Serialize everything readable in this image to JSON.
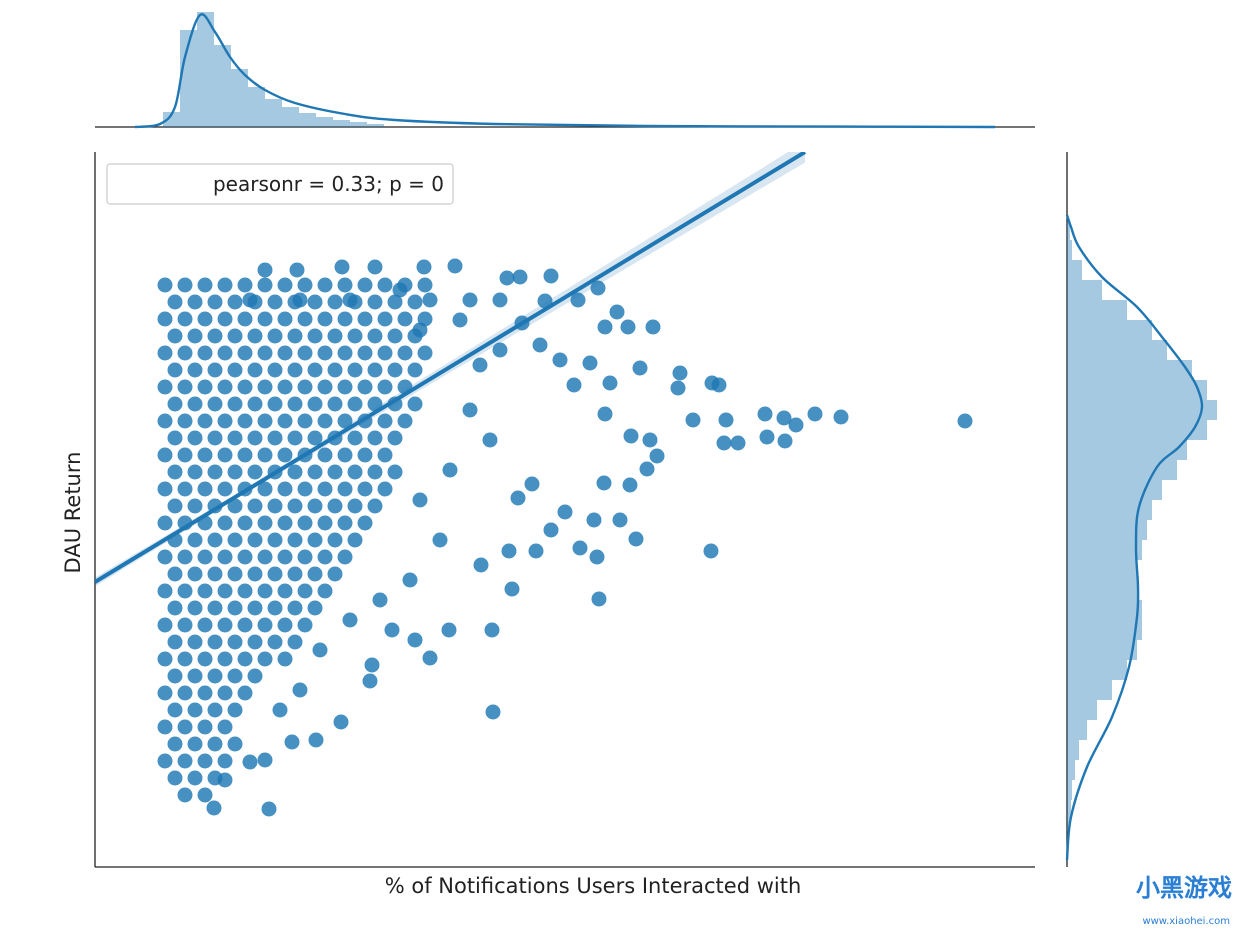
{
  "chart_data": [
    {
      "type": "scatter",
      "x_label": "% of Notifications Users Interacted with",
      "y_label": "DAU Return",
      "annotation": "pearsonr = 0.33; p = 0",
      "xlim": [
        0,
        94
      ],
      "ylim": [
        0,
        71.5
      ],
      "series": [
        {
          "color": "#1f77b4",
          "x": [
            7,
            9,
            11,
            13,
            15,
            17,
            19,
            21,
            23,
            25,
            27,
            29,
            31,
            33,
            8,
            10,
            12,
            14,
            16,
            18,
            20,
            22,
            24,
            26,
            28,
            30,
            32,
            7,
            9,
            11,
            13,
            15,
            17,
            19,
            21,
            23,
            25,
            27,
            29,
            31,
            33,
            8,
            10,
            12,
            14,
            16,
            18,
            20,
            22,
            24,
            26,
            28,
            30,
            32,
            7,
            9,
            11,
            13,
            15,
            17,
            19,
            21,
            23,
            25,
            27,
            29,
            31,
            33,
            8,
            10,
            12,
            14,
            16,
            18,
            20,
            22,
            24,
            26,
            28,
            30,
            32,
            7,
            9,
            11,
            13,
            15,
            17,
            19,
            21,
            23,
            25,
            27,
            29,
            31,
            8,
            10,
            12,
            14,
            16,
            18,
            20,
            22,
            24,
            26,
            28,
            30,
            32,
            7,
            9,
            11,
            13,
            15,
            17,
            19,
            21,
            23,
            25,
            27,
            29,
            31,
            8,
            10,
            12,
            14,
            16,
            18,
            20,
            22,
            24,
            26,
            28,
            30,
            7,
            9,
            11,
            13,
            15,
            17,
            19,
            21,
            23,
            25,
            27,
            29,
            8,
            10,
            12,
            14,
            16,
            18,
            20,
            22,
            24,
            26,
            28,
            30,
            7,
            9,
            11,
            13,
            15,
            17,
            19,
            21,
            23,
            25,
            27,
            29,
            8,
            10,
            12,
            14,
            16,
            18,
            20,
            22,
            24,
            26,
            28,
            7,
            9,
            11,
            13,
            15,
            17,
            19,
            21,
            23,
            25,
            27,
            8,
            10,
            12,
            14,
            16,
            18,
            20,
            22,
            24,
            26,
            7,
            9,
            11,
            13,
            15,
            17,
            19,
            21,
            23,
            25,
            8,
            10,
            12,
            14,
            16,
            18,
            20,
            22,
            24,
            7,
            9,
            11,
            13,
            15,
            17,
            19,
            21,
            23,
            8,
            10,
            12,
            14,
            16,
            18,
            20,
            22,
            7,
            9,
            11,
            13,
            15,
            17,
            19,
            21,
            8,
            10,
            12,
            14,
            16,
            18,
            20,
            7,
            9,
            11,
            13,
            15,
            17,
            19,
            8,
            10,
            12,
            14,
            16,
            7,
            9,
            11,
            13,
            15,
            8,
            10,
            12,
            14,
            7,
            9,
            11,
            13,
            8,
            10,
            12,
            14,
            7,
            9,
            11,
            13,
            8,
            10,
            12,
            9,
            11,
            87,
            74.6,
            72,
            68.9,
            67,
            70.1,
            63.1,
            64.3,
            62.9,
            67.2,
            69,
            59.8,
            61.6,
            50.4,
            39.8,
            17.4,
            50.9,
            53.5,
            54.1,
            51,
            53.6,
            55.5,
            56.2,
            55.2,
            61.7,
            62.4,
            58.5,
            58.3,
            52.5,
            49.9,
            48.5,
            50.2,
            44.1,
            41.7,
            38.6,
            41.4,
            45.6,
            47,
            42.3,
            43.7,
            55.8,
            53.3,
            51,
            52.2,
            48.3,
            50.3,
            45.6,
            42.5,
            41.2,
            36,
            32.9,
            28,
            24.7,
            20.2,
            17,
            35.4,
            39.7,
            33.5,
            32,
            29.7,
            27.7,
            27.5,
            24.6,
            22.1,
            19.7,
            17,
            15.5,
            13,
            11.9,
            51.5,
            54.5,
            49.5,
            47.9,
            44.5,
            46.5,
            40.5,
            38.5,
            37.5,
            39.5,
            35.5,
            32.5,
            34.5,
            31.5,
            28.5,
            25.5,
            22.5,
            20.5,
            18.5,
            33.5,
            36.5,
            30.5,
            25.5,
            20.5,
            15.5,
            42.7,
            45,
            37.5,
            40.5,
            32.5
          ],
          "y": [
            58.2,
            58.2,
            58.2,
            58.2,
            58.2,
            58.2,
            58.2,
            58.2,
            58.2,
            58.2,
            58.2,
            58.2,
            58.2,
            58.2,
            56.5,
            56.5,
            56.5,
            56.5,
            56.5,
            56.5,
            56.5,
            56.5,
            56.5,
            56.5,
            56.5,
            56.5,
            56.5,
            54.8,
            54.8,
            54.8,
            54.8,
            54.8,
            54.8,
            54.8,
            54.8,
            54.8,
            54.8,
            54.8,
            54.8,
            54.8,
            54.8,
            53.1,
            53.1,
            53.1,
            53.1,
            53.1,
            53.1,
            53.1,
            53.1,
            53.1,
            53.1,
            53.1,
            53.1,
            53.1,
            51.4,
            51.4,
            51.4,
            51.4,
            51.4,
            51.4,
            51.4,
            51.4,
            51.4,
            51.4,
            51.4,
            51.4,
            51.4,
            51.4,
            49.7,
            49.7,
            49.7,
            49.7,
            49.7,
            49.7,
            49.7,
            49.7,
            49.7,
            49.7,
            49.7,
            49.7,
            49.7,
            48,
            48,
            48,
            48,
            48,
            48,
            48,
            48,
            48,
            48,
            48,
            48,
            48,
            46.3,
            46.3,
            46.3,
            46.3,
            46.3,
            46.3,
            46.3,
            46.3,
            46.3,
            46.3,
            46.3,
            46.3,
            46.3,
            44.6,
            44.6,
            44.6,
            44.6,
            44.6,
            44.6,
            44.6,
            44.6,
            44.6,
            44.6,
            44.6,
            44.6,
            44.6,
            42.9,
            42.9,
            42.9,
            42.9,
            42.9,
            42.9,
            42.9,
            42.9,
            42.9,
            42.9,
            42.9,
            42.9,
            41.2,
            41.2,
            41.2,
            41.2,
            41.2,
            41.2,
            41.2,
            41.2,
            41.2,
            41.2,
            41.2,
            41.2,
            39.5,
            39.5,
            39.5,
            39.5,
            39.5,
            39.5,
            39.5,
            39.5,
            39.5,
            39.5,
            39.5,
            39.5,
            37.8,
            37.8,
            37.8,
            37.8,
            37.8,
            37.8,
            37.8,
            37.8,
            37.8,
            37.8,
            37.8,
            37.8,
            36.1,
            36.1,
            36.1,
            36.1,
            36.1,
            36.1,
            36.1,
            36.1,
            36.1,
            36.1,
            36.1,
            34.4,
            34.4,
            34.4,
            34.4,
            34.4,
            34.4,
            34.4,
            34.4,
            34.4,
            34.4,
            34.4,
            32.7,
            32.7,
            32.7,
            32.7,
            32.7,
            32.7,
            32.7,
            32.7,
            32.7,
            32.7,
            31,
            31,
            31,
            31,
            31,
            31,
            31,
            31,
            31,
            31,
            29.3,
            29.3,
            29.3,
            29.3,
            29.3,
            29.3,
            29.3,
            29.3,
            29.3,
            27.6,
            27.6,
            27.6,
            27.6,
            27.6,
            27.6,
            27.6,
            27.6,
            27.6,
            25.9,
            25.9,
            25.9,
            25.9,
            25.9,
            25.9,
            25.9,
            25.9,
            24.2,
            24.2,
            24.2,
            24.2,
            24.2,
            24.2,
            24.2,
            24.2,
            22.5,
            22.5,
            22.5,
            22.5,
            22.5,
            22.5,
            22.5,
            20.8,
            20.8,
            20.8,
            20.8,
            20.8,
            20.8,
            20.8,
            19.1,
            19.1,
            19.1,
            19.1,
            19.1,
            17.4,
            17.4,
            17.4,
            17.4,
            17.4,
            15.7,
            15.7,
            15.7,
            15.7,
            14,
            14,
            14,
            14,
            12.3,
            12.3,
            12.3,
            12.3,
            10.6,
            10.6,
            10.6,
            10.6,
            8.9,
            8.9,
            8.9,
            7.2,
            7.2,
            44.6,
            45,
            45.3,
            44.9,
            45.3,
            44.2,
            44.7,
            42.4,
            42.4,
            43,
            42.6,
            44.7,
            31.6,
            26.8,
            15.5,
            5.8,
            38.4,
            38.2,
            32.8,
            45.3,
            43.1,
            42.7,
            41.1,
            39.8,
            48.4,
            48.2,
            49.4,
            47.9,
            34.7,
            34.7,
            31.9,
            31,
            31.6,
            27.8,
            30.2,
            31.6,
            33.7,
            35.5,
            36.9,
            38.3,
            54,
            54,
            54,
            55.5,
            56.7,
            57.9,
            59.1,
            59,
            58.9,
            60.1,
            60,
            60,
            60,
            59.7,
            59.7,
            23.7,
            23.7,
            20.9,
            22.7,
            23.7,
            20.2,
            18.6,
            14.5,
            12.7,
            12.5,
            10.7,
            10.5,
            8.7,
            5.9,
            48.4,
            49.9,
            50.4,
            48.2,
            52.2,
            50.7,
            51.7,
            50.2,
            45.7,
            42.7,
            39.7,
            36.7,
            32.7,
            28.7,
            26.7,
            24.7,
            21.7,
            17.7,
            15.7,
            56.7,
            54.7,
            57.7,
            56.7,
            56.7,
            56.7,
            54.4,
            56.6,
            56.7,
            56.7,
            53.7
          ]
        }
      ],
      "fit": {
        "x": [
          0,
          71
        ],
        "y": [
          28.5,
          71.5
        ]
      }
    },
    {
      "type": "histogram",
      "orientation": "vertical",
      "color": "#1f77b4",
      "xlim": [
        0,
        94
      ],
      "ylim": [
        0,
        120
      ],
      "bins": [
        6.8,
        8.5,
        10.2,
        11.9,
        13.6,
        15.3,
        17.0,
        18.7,
        20.4,
        22.1,
        23.8,
        25.5,
        27.2,
        28.9
      ],
      "counts": [
        15,
        97,
        115,
        82,
        58,
        40,
        28,
        20,
        14,
        10,
        7,
        5,
        3
      ],
      "kde": {
        "x": [
          4,
          6.5,
          8,
          9,
          10.5,
          12,
          13.5,
          15,
          17,
          20,
          25,
          30,
          40,
          55,
          75,
          90
        ],
        "y": [
          0,
          3,
          20,
          70,
          112,
          95,
          70,
          52,
          37,
          24,
          13,
          7,
          3,
          1,
          0.4,
          0
        ]
      }
    },
    {
      "type": "histogram",
      "orientation": "horizontal",
      "color": "#1f77b4",
      "xlim": [
        0,
        160
      ],
      "ylim": [
        0,
        71.5
      ],
      "bins": [
        0.7,
        2.7,
        4.7,
        6.7,
        8.7,
        10.7,
        12.7,
        14.7,
        16.7,
        18.7,
        20.7,
        22.7,
        24.7,
        26.7,
        28.7,
        30.7,
        32.7,
        34.7,
        36.7,
        38.7,
        40.7,
        42.7,
        44.7,
        46.7,
        48.7,
        50.7,
        52.7,
        54.7,
        56.7,
        58.7,
        60.7,
        62.7,
        64.7
      ],
      "counts": [
        1,
        2,
        4,
        5,
        8,
        12,
        20,
        30,
        45,
        60,
        70,
        75,
        75,
        72,
        70,
        75,
        80,
        85,
        95,
        110,
        120,
        140,
        150,
        140,
        125,
        100,
        85,
        60,
        35,
        15,
        5,
        3
      ],
      "kde": {
        "y": [
          0.7,
          5,
          10,
          15,
          20,
          25,
          28,
          32,
          36,
          40,
          42,
          44,
          46,
          48,
          50,
          53,
          56,
          59,
          62,
          64,
          65.2
        ],
        "x": [
          0,
          4,
          20,
          45,
          62,
          70,
          71,
          69,
          72,
          90,
          112,
          128,
          135,
          130,
          118,
          95,
          70,
          35,
          12,
          4,
          0
        ]
      }
    }
  ],
  "watermark": {
    "brand": "小黑游戏",
    "url": "www.xiaohei.com"
  }
}
